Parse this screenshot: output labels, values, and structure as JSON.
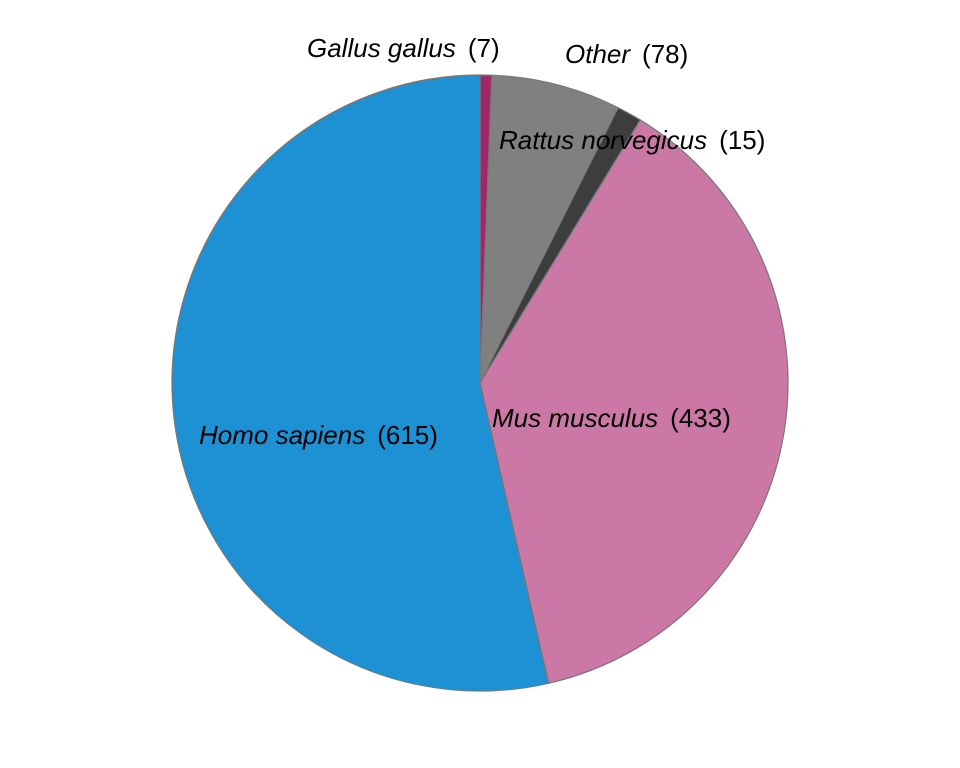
{
  "chart_data": {
    "type": "pie",
    "title": "",
    "start_angle_deg": 0,
    "direction": "clockwise",
    "slices": [
      {
        "label": "Gallus gallus",
        "value": 7,
        "count_text": "(7)",
        "color": "#a0286a"
      },
      {
        "label": "Other",
        "value": 78,
        "count_text": "(78)",
        "color": "#808080"
      },
      {
        "label": "Rattus norvegicus",
        "value": 15,
        "count_text": "(15)",
        "color": "#3d3d3d"
      },
      {
        "label": "Mus musculus",
        "value": 433,
        "count_text": "(433)",
        "color": "#cc78a6"
      },
      {
        "label": "Homo sapiens",
        "value": 615,
        "count_text": "(615)",
        "color": "#1e90d4"
      }
    ]
  }
}
